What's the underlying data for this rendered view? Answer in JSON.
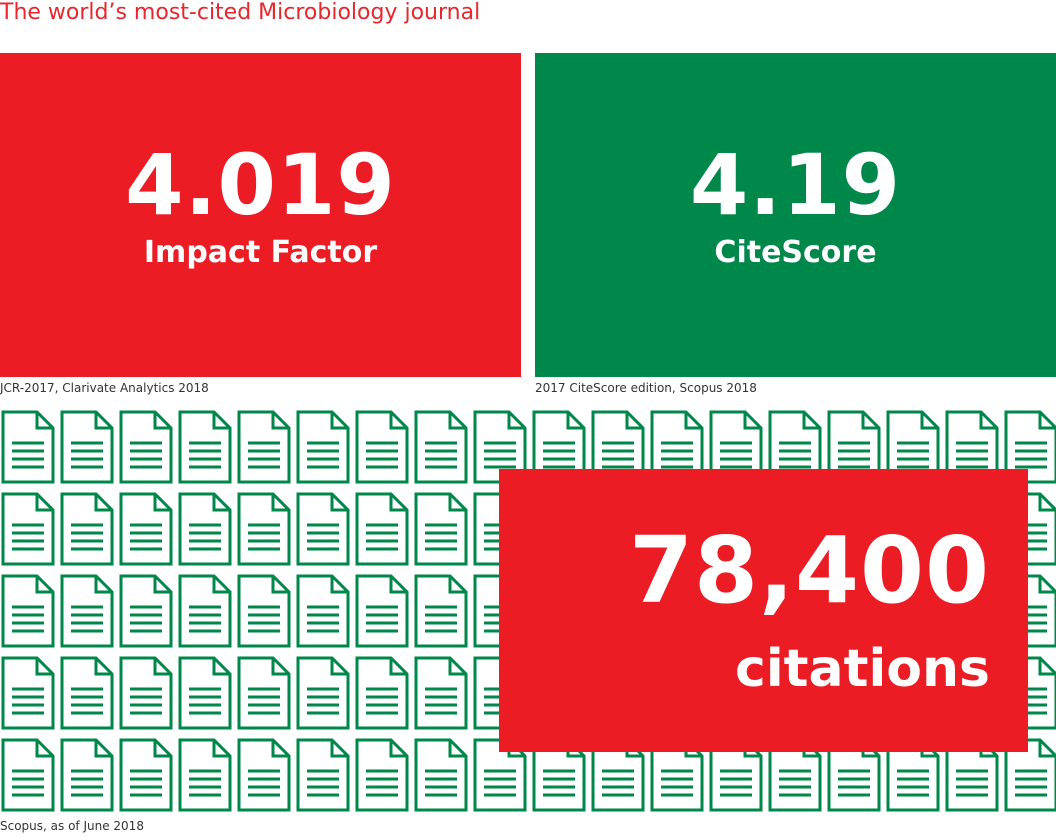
{
  "headline": "The world’s most-cited Microbiology journal",
  "impact_factor": {
    "value": "4.019",
    "label": "Impact Factor",
    "source": "JCR-2017, Clarivate Analytics 2018",
    "color": "#ec1c24"
  },
  "citescore": {
    "value": "4.19",
    "label": "CiteScore",
    "source": "2017 CiteScore edition, Scopus 2018",
    "color": "#00874a"
  },
  "citations": {
    "value": "78,400",
    "label": "citations",
    "source": "Scopus, as of June 2018",
    "color": "#ec1c24"
  },
  "document_grid": {
    "icon": "document-icon",
    "icon_color": "#00874a",
    "rows": 5,
    "columns": 18
  }
}
